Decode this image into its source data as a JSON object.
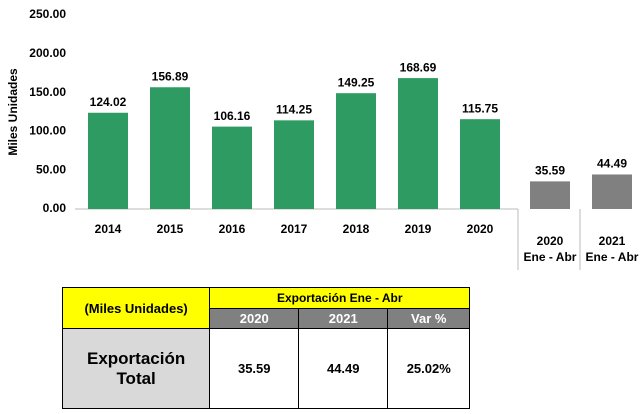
{
  "chart_data": {
    "type": "bar",
    "y_label": "Miles Unidades",
    "categories": [
      "2014",
      "2015",
      "2016",
      "2017",
      "2018",
      "2019",
      "2020",
      "2020",
      "2021"
    ],
    "period_label": "Ene - Abr",
    "values": [
      124.02,
      156.89,
      106.16,
      114.25,
      149.25,
      168.69,
      115.75,
      35.59,
      44.49
    ],
    "colors": [
      "#2e9b63",
      "#2e9b63",
      "#2e9b63",
      "#2e9b63",
      "#2e9b63",
      "#2e9b63",
      "#2e9b63",
      "#808080",
      "#808080"
    ],
    "ylim": [
      0,
      250
    ],
    "yticks": [
      {
        "value": 0,
        "label": "0.00"
      },
      {
        "value": 50,
        "label": "50.00"
      },
      {
        "value": 100,
        "label": "100.00"
      },
      {
        "value": 150,
        "label": "150.00"
      },
      {
        "value": 200,
        "label": "200.00"
      },
      {
        "value": 250,
        "label": "250.00"
      }
    ],
    "grid": false
  },
  "table": {
    "unit": "(Miles Unidades)",
    "group_header": "Exportación Ene - Abr",
    "columns": [
      "2020",
      "2021",
      "Var %"
    ],
    "row_label": "Exportación Total",
    "row": [
      "35.59",
      "44.49",
      "25.02%"
    ]
  }
}
